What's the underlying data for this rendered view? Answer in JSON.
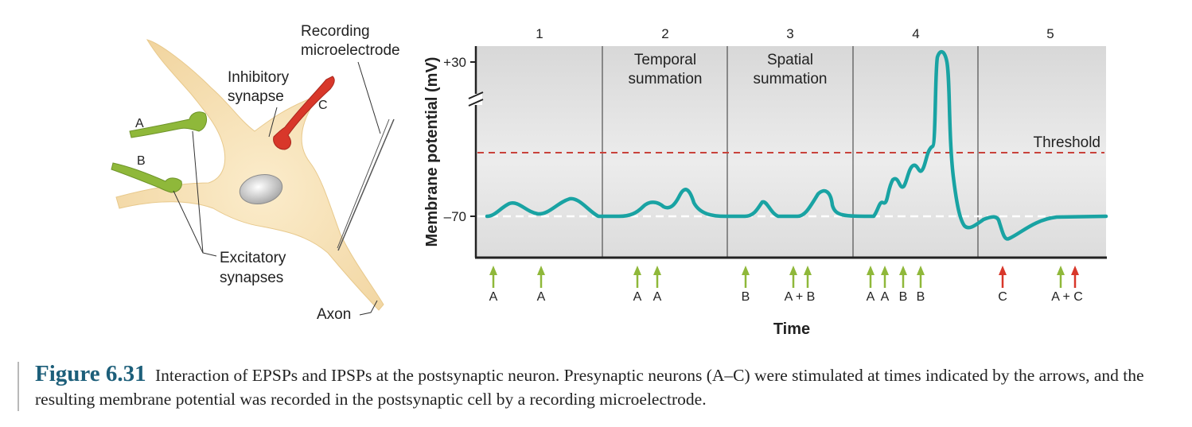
{
  "neuron": {
    "labels": {
      "recording": "Recording",
      "microelectrode": "microelectrode",
      "inhibitory": "Inhibitory",
      "synapse": "synapse",
      "c": "C",
      "a": "A",
      "b": "B",
      "excitatory": "Excitatory",
      "synapses": "synapses",
      "axon": "Axon"
    },
    "colors": {
      "cell": "#f6dfb0",
      "excitatory": "#8fb83a",
      "inhibitory": "#d8372a"
    }
  },
  "graph": {
    "ylabel": "Membrane potential (mV)",
    "xlabel": "Time",
    "y_ticks": {
      "top": "+30",
      "bottom": "–70"
    },
    "threshold_label": "Threshold",
    "panels": [
      {
        "number": "1",
        "title_line1": "",
        "title_line2": ""
      },
      {
        "number": "2",
        "title_line1": "Temporal",
        "title_line2": "summation"
      },
      {
        "number": "3",
        "title_line1": "Spatial",
        "title_line2": "summation"
      },
      {
        "number": "4",
        "title_line1": "",
        "title_line2": ""
      },
      {
        "number": "5",
        "title_line1": "",
        "title_line2": ""
      }
    ],
    "stimuli": [
      {
        "label": "A",
        "type": "excitatory"
      },
      {
        "label": "A",
        "type": "excitatory"
      },
      {
        "label": "A",
        "type": "excitatory"
      },
      {
        "label": "A",
        "type": "excitatory"
      },
      {
        "label": "B",
        "type": "excitatory"
      },
      {
        "label": "A + B",
        "type": "excitatory",
        "double": true
      },
      {
        "label": "A",
        "type": "excitatory"
      },
      {
        "label": "A",
        "type": "excitatory"
      },
      {
        "label": "B",
        "type": "excitatory"
      },
      {
        "label": "B",
        "type": "excitatory"
      },
      {
        "label": "C",
        "type": "inhibitory"
      },
      {
        "label": "A + C",
        "type": "mixed",
        "double": true
      }
    ],
    "colors": {
      "trace": "#19a3a3",
      "threshold": "#c9423b",
      "excitatory_arrow": "#8fb83a",
      "inhibitory_arrow": "#d8372a"
    }
  },
  "caption": {
    "figure_number": "Figure 6.31",
    "text": "Interaction of EPSPs and IPSPs at the postsynaptic neuron. Presynaptic neurons (A–C) were stimulated at times indicated by the arrows, and the resulting membrane potential was recorded in the postsynaptic cell by a recording microelectrode."
  }
}
